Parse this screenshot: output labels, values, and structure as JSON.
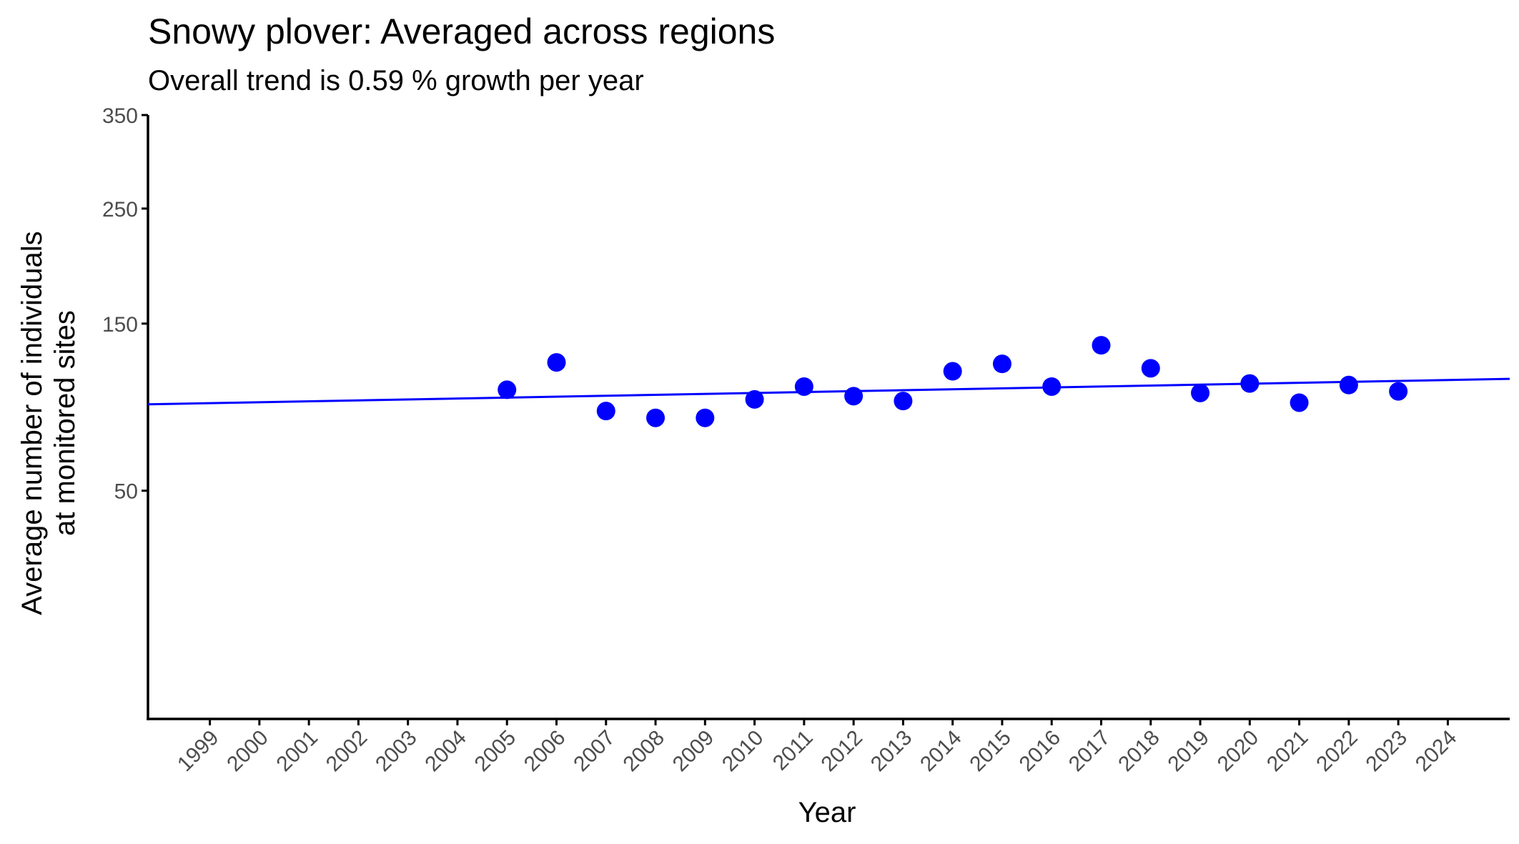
{
  "chart_data": {
    "type": "scatter",
    "title": "Snowy plover: Averaged across regions",
    "subtitle": "Overall trend is 0.59 % growth per year",
    "xlabel": "Year",
    "ylabel_lines": [
      "Average number of individuals",
      "at monitored sites"
    ],
    "y_scale": "sqrt",
    "xlim": [
      1997.75,
      2025.25
    ],
    "ylim": [
      0,
      350
    ],
    "x_ticks": [
      1999,
      2000,
      2001,
      2002,
      2003,
      2004,
      2005,
      2006,
      2007,
      2008,
      2009,
      2010,
      2011,
      2012,
      2013,
      2014,
      2015,
      2016,
      2017,
      2018,
      2019,
      2020,
      2021,
      2022,
      2023,
      2024
    ],
    "y_ticks": [
      50,
      150,
      250,
      350
    ],
    "grid": false,
    "point_color": "#0000ff",
    "line_color": "#0000ff",
    "points": {
      "x": [
        2005,
        2006,
        2007,
        2008,
        2009,
        2010,
        2011,
        2012,
        2013,
        2014,
        2015,
        2016,
        2017,
        2018,
        2019,
        2020,
        2021,
        2022,
        2023
      ],
      "y": [
        104,
        122,
        91,
        87,
        87,
        98,
        106,
        100,
        97,
        116,
        121,
        106,
        134,
        118,
        102,
        108,
        96,
        107,
        103
      ]
    },
    "trend": {
      "x": [
        1997.75,
        2025.25
      ],
      "y": [
        95,
        111
      ]
    }
  }
}
